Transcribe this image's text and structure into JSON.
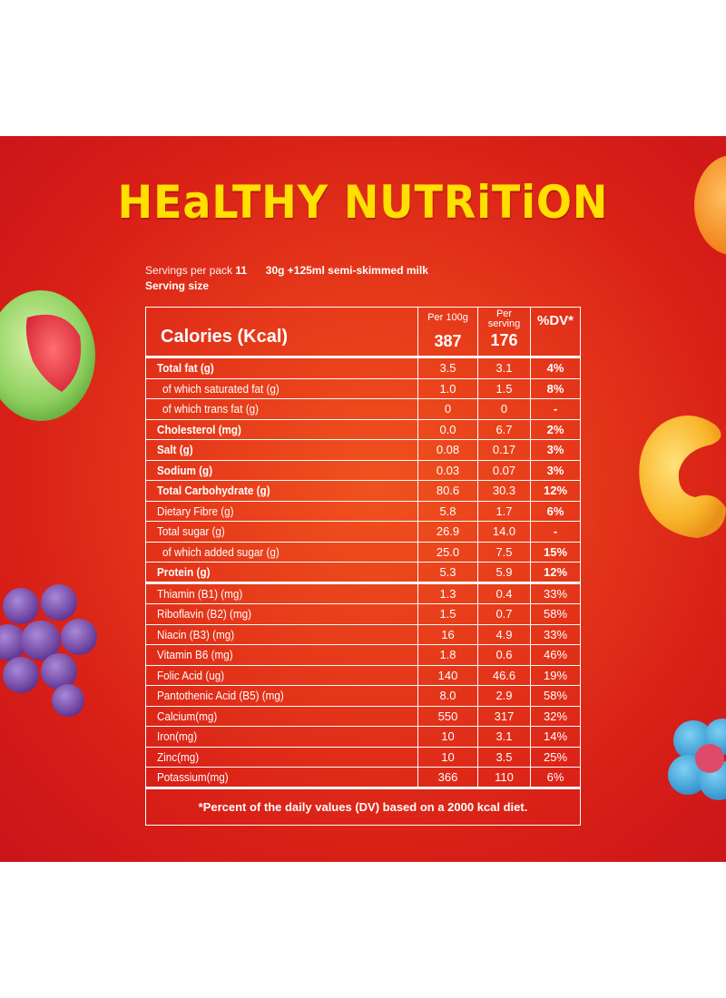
{
  "title": "HEaLTHY NUTRiTiON",
  "serving": {
    "servings_label": "Servings  per pack",
    "servings_value": "11",
    "serving_detail": "30g +125ml semi-skimmed milk",
    "size_label": "Serving size"
  },
  "table": {
    "calories_label": "Calories (Kcal)",
    "col_per100": "Per 100g",
    "col_serving_l1": "Per",
    "col_serving_l2": "serving",
    "col_dv": "%DV*",
    "kcal_per100": "387",
    "kcal_serving": "176",
    "rows": [
      {
        "name": "Total fat (g)",
        "per100": "3.5",
        "serving": "3.1",
        "dv": "4%"
      },
      {
        "name": " of which saturated fat (g)",
        "per100": "1.0",
        "serving": "1.5",
        "dv": "8%"
      },
      {
        "name": " of which trans fat (g)",
        "per100": "0",
        "serving": "0",
        "dv": "-"
      },
      {
        "name": "Cholesterol (mg)",
        "per100": "0.0",
        "serving": "6.7",
        "dv": "2%"
      },
      {
        "name": "Salt (g)",
        "per100": "0.08",
        "serving": "0.17",
        "dv": "3%"
      },
      {
        "name": "Sodium (g)",
        "per100": "0.03",
        "serving": "0.07",
        "dv": "3%"
      },
      {
        "name": "Total Carbohydrate (g)",
        "per100": "80.6",
        "serving": "30.3",
        "dv": "12%"
      },
      {
        "name": "Dietary Fibre (g)",
        "per100": "5.8",
        "serving": "1.7",
        "dv": "6%"
      },
      {
        "name": "Total sugar (g)",
        "per100": "26.9",
        "serving": "14.0",
        "dv": "-"
      },
      {
        "name": " of which added sugar (g)",
        "per100": "25.0",
        "serving": "7.5",
        "dv": "15%"
      },
      {
        "name": "Protein (g)",
        "per100": "5.3",
        "serving": "5.9",
        "dv": "12%"
      },
      {
        "name": "Thiamin (B1) (mg)",
        "per100": "1.3",
        "serving": "0.4",
        "dv": "33%"
      },
      {
        "name": "Riboflavin (B2) (mg)",
        "per100": "1.5",
        "serving": "0.7",
        "dv": "58%"
      },
      {
        "name": "Niacin (B3) (mg)",
        "per100": "16",
        "serving": "4.9",
        "dv": "33%"
      },
      {
        "name": "Vitamin B6 (mg)",
        "per100": "1.8",
        "serving": "0.6",
        "dv": "46%"
      },
      {
        "name": "Folic Acid (ug)",
        "per100": "140",
        "serving": "46.6",
        "dv": "19%"
      },
      {
        "name": "Pantothenic Acid (B5) (mg)",
        "per100": "8.0",
        "serving": "2.9",
        "dv": "58%"
      },
      {
        "name": "Calcium(mg)",
        "per100": "550",
        "serving": "317",
        "dv": "32%"
      },
      {
        "name": "Iron(mg)",
        "per100": "10",
        "serving": "3.1",
        "dv": "14%"
      },
      {
        "name": "Zinc(mg)",
        "per100": "10",
        "serving": "3.5",
        "dv": "25%"
      },
      {
        "name": "Potassium(mg)",
        "per100": "366",
        "serving": "110",
        "dv": "6%"
      }
    ],
    "footnote": "*Percent of the daily values (DV) based on a 2000 kcal diet."
  },
  "colors": {
    "background": "#d81f17",
    "headline": "#ffe000",
    "text": "#ffffff"
  }
}
